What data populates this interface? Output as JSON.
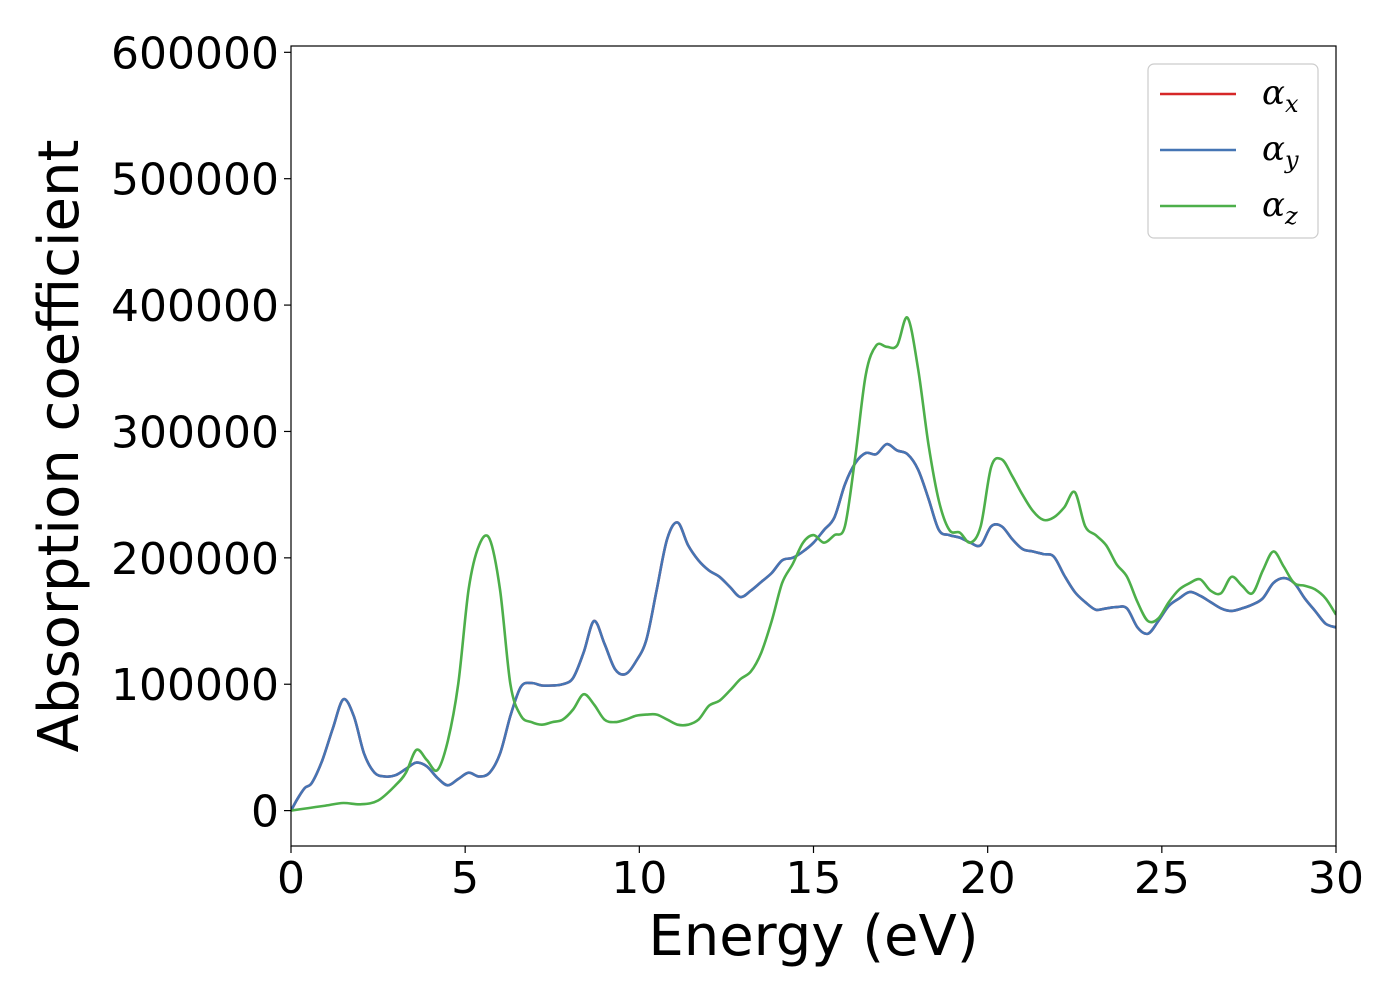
{
  "chart_data": {
    "type": "line",
    "title": "",
    "xlabel": "Energy (eV)",
    "ylabel": "Absorption coefficient",
    "xlim": [
      0,
      30
    ],
    "ylim": [
      -28000,
      605000
    ],
    "grid": false,
    "legend_position": "top-right",
    "x_ticks": [
      0,
      5,
      10,
      15,
      20,
      25,
      30
    ],
    "x_tick_labels": [
      "0",
      "5",
      "10",
      "15",
      "20",
      "25",
      "30"
    ],
    "y_ticks": [
      0,
      100000,
      200000,
      300000,
      400000,
      500000,
      600000
    ],
    "y_tick_labels": [
      "0",
      "100000",
      "200000",
      "300000",
      "400000",
      "500000",
      "600000"
    ],
    "legend": [
      {
        "symbol": "α",
        "subscript": "x"
      },
      {
        "symbol": "α",
        "subscript": "y"
      },
      {
        "symbol": "α",
        "subscript": "z"
      }
    ],
    "series": [
      {
        "name": "αx",
        "color": "#d62728",
        "x": [
          0,
          0.2,
          0.4,
          0.6,
          0.9,
          1.2,
          1.5,
          1.8,
          2.1,
          2.4,
          2.7,
          3.0,
          3.3,
          3.6,
          3.9,
          4.2,
          4.5,
          4.8,
          5.1,
          5.4,
          5.7,
          6.0,
          6.3,
          6.6,
          6.9,
          7.2,
          7.5,
          7.8,
          8.1,
          8.4,
          8.7,
          9.0,
          9.3,
          9.6,
          9.9,
          10.2,
          10.5,
          10.8,
          11.1,
          11.4,
          11.7,
          12.0,
          12.3,
          12.6,
          12.9,
          13.2,
          13.5,
          13.8,
          14.1,
          14.4,
          14.7,
          15.0,
          15.3,
          15.6,
          15.9,
          16.2,
          16.5,
          16.8,
          17.1,
          17.4,
          17.7,
          18.0,
          18.3,
          18.6,
          18.9,
          19.2,
          19.5,
          19.8,
          20.1,
          20.4,
          20.7,
          21.0,
          21.3,
          21.6,
          21.9,
          22.2,
          22.5,
          22.8,
          23.1,
          23.4,
          23.7,
          24.0,
          24.3,
          24.6,
          24.9,
          25.2,
          25.5,
          25.8,
          26.1,
          26.4,
          26.7,
          27.0,
          27.3,
          27.6,
          27.9,
          28.2,
          28.5,
          28.8,
          29.1,
          29.4,
          29.7,
          30.0
        ],
        "y": [
          0,
          10000,
          18000,
          22000,
          40000,
          65000,
          88000,
          75000,
          45000,
          30000,
          27000,
          28000,
          33000,
          38000,
          35000,
          26000,
          20000,
          25000,
          30000,
          27000,
          30000,
          45000,
          75000,
          98000,
          101000,
          99000,
          99000,
          100000,
          105000,
          125000,
          150000,
          132000,
          112000,
          108000,
          118000,
          135000,
          175000,
          215000,
          228000,
          210000,
          198000,
          190000,
          185000,
          177000,
          169000,
          174000,
          181000,
          188000,
          198000,
          200000,
          205000,
          212000,
          222000,
          232000,
          258000,
          275000,
          283000,
          282000,
          290000,
          285000,
          282000,
          270000,
          247000,
          222000,
          218000,
          216000,
          212000,
          210000,
          225000,
          225000,
          215000,
          207000,
          205000,
          203000,
          201000,
          186000,
          173000,
          165000,
          159000,
          160000,
          161000,
          160000,
          145000,
          140000,
          150000,
          162000,
          168000,
          173000,
          170000,
          165000,
          160000,
          158000,
          160000,
          163000,
          168000,
          180000,
          184000,
          180000,
          168000,
          158000,
          148000,
          145000
        ]
      },
      {
        "name": "αy",
        "color": "#4575b4",
        "x": [
          0,
          0.2,
          0.4,
          0.6,
          0.9,
          1.2,
          1.5,
          1.8,
          2.1,
          2.4,
          2.7,
          3.0,
          3.3,
          3.6,
          3.9,
          4.2,
          4.5,
          4.8,
          5.1,
          5.4,
          5.7,
          6.0,
          6.3,
          6.6,
          6.9,
          7.2,
          7.5,
          7.8,
          8.1,
          8.4,
          8.7,
          9.0,
          9.3,
          9.6,
          9.9,
          10.2,
          10.5,
          10.8,
          11.1,
          11.4,
          11.7,
          12.0,
          12.3,
          12.6,
          12.9,
          13.2,
          13.5,
          13.8,
          14.1,
          14.4,
          14.7,
          15.0,
          15.3,
          15.6,
          15.9,
          16.2,
          16.5,
          16.8,
          17.1,
          17.4,
          17.7,
          18.0,
          18.3,
          18.6,
          18.9,
          19.2,
          19.5,
          19.8,
          20.1,
          20.4,
          20.7,
          21.0,
          21.3,
          21.6,
          21.9,
          22.2,
          22.5,
          22.8,
          23.1,
          23.4,
          23.7,
          24.0,
          24.3,
          24.6,
          24.9,
          25.2,
          25.5,
          25.8,
          26.1,
          26.4,
          26.7,
          27.0,
          27.3,
          27.6,
          27.9,
          28.2,
          28.5,
          28.8,
          29.1,
          29.4,
          29.7,
          30.0
        ],
        "y": [
          0,
          10000,
          18000,
          22000,
          40000,
          65000,
          88000,
          75000,
          45000,
          30000,
          27000,
          28000,
          33000,
          38000,
          35000,
          26000,
          20000,
          25000,
          30000,
          27000,
          30000,
          45000,
          75000,
          98000,
          101000,
          99000,
          99000,
          100000,
          105000,
          125000,
          150000,
          132000,
          112000,
          108000,
          118000,
          135000,
          175000,
          215000,
          228000,
          210000,
          198000,
          190000,
          185000,
          177000,
          169000,
          174000,
          181000,
          188000,
          198000,
          200000,
          205000,
          212000,
          222000,
          232000,
          258000,
          275000,
          283000,
          282000,
          290000,
          285000,
          282000,
          270000,
          247000,
          222000,
          218000,
          216000,
          212000,
          210000,
          225000,
          225000,
          215000,
          207000,
          205000,
          203000,
          201000,
          186000,
          173000,
          165000,
          159000,
          160000,
          161000,
          160000,
          145000,
          140000,
          150000,
          162000,
          168000,
          173000,
          170000,
          165000,
          160000,
          158000,
          160000,
          163000,
          168000,
          180000,
          184000,
          180000,
          168000,
          158000,
          148000,
          145000
        ]
      },
      {
        "name": "αz",
        "color": "#4daf4a",
        "x": [
          0,
          0.5,
          1.0,
          1.5,
          2.0,
          2.5,
          3.0,
          3.3,
          3.6,
          3.9,
          4.2,
          4.5,
          4.8,
          5.1,
          5.4,
          5.7,
          6.0,
          6.3,
          6.6,
          6.9,
          7.2,
          7.5,
          7.8,
          8.1,
          8.4,
          8.7,
          9.0,
          9.3,
          9.6,
          9.9,
          10.2,
          10.5,
          10.8,
          11.1,
          11.4,
          11.7,
          12.0,
          12.3,
          12.6,
          12.9,
          13.2,
          13.5,
          13.8,
          14.1,
          14.4,
          14.7,
          15.0,
          15.3,
          15.6,
          15.9,
          16.2,
          16.5,
          16.8,
          17.1,
          17.4,
          17.7,
          18.0,
          18.3,
          18.6,
          18.9,
          19.2,
          19.5,
          19.8,
          20.1,
          20.4,
          20.7,
          21.0,
          21.3,
          21.6,
          21.9,
          22.2,
          22.5,
          22.8,
          23.1,
          23.4,
          23.7,
          24.0,
          24.3,
          24.6,
          24.9,
          25.2,
          25.5,
          25.8,
          26.1,
          26.4,
          26.7,
          27.0,
          27.3,
          27.6,
          27.9,
          28.2,
          28.5,
          28.8,
          29.1,
          29.4,
          29.7,
          30.0
        ],
        "y": [
          0,
          2000,
          4000,
          6000,
          5000,
          8000,
          20000,
          30000,
          48000,
          40000,
          32000,
          55000,
          100000,
          175000,
          210000,
          215000,
          175000,
          100000,
          75000,
          70000,
          68000,
          70000,
          72000,
          80000,
          92000,
          84000,
          72000,
          70000,
          72000,
          75000,
          76000,
          76000,
          72000,
          68000,
          68000,
          72000,
          83000,
          87000,
          95000,
          104000,
          110000,
          125000,
          150000,
          180000,
          195000,
          212000,
          218000,
          212000,
          218000,
          225000,
          280000,
          345000,
          368000,
          367000,
          368000,
          390000,
          350000,
          290000,
          245000,
          222000,
          220000,
          212000,
          225000,
          272000,
          278000,
          265000,
          250000,
          237000,
          230000,
          232000,
          240000,
          252000,
          225000,
          218000,
          210000,
          195000,
          185000,
          165000,
          150000,
          152000,
          165000,
          175000,
          180000,
          183000,
          174000,
          172000,
          185000,
          178000,
          172000,
          190000,
          205000,
          193000,
          180000,
          178000,
          175000,
          168000,
          155000
        ]
      }
    ]
  }
}
